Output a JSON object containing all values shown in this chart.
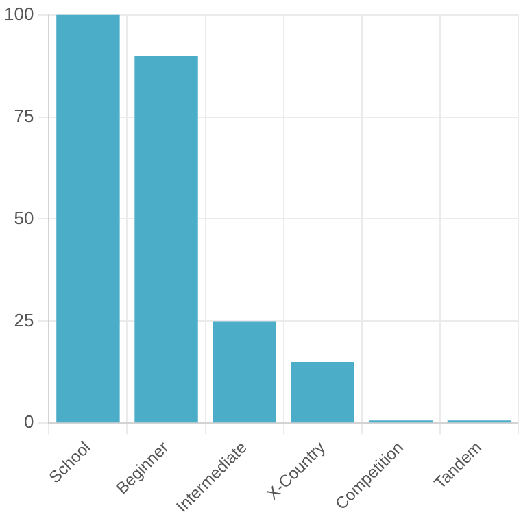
{
  "chart_data": {
    "type": "bar",
    "categories": [
      "School",
      "Beginner",
      "Intermediate",
      "X-Country",
      "Competition",
      "Tandem"
    ],
    "values": [
      100,
      90,
      25,
      15,
      0,
      0
    ],
    "color": "#4badc8",
    "ylim": [
      0,
      100
    ],
    "yticks": [
      0,
      25,
      50,
      75,
      100
    ],
    "grid": true,
    "legend": false
  }
}
